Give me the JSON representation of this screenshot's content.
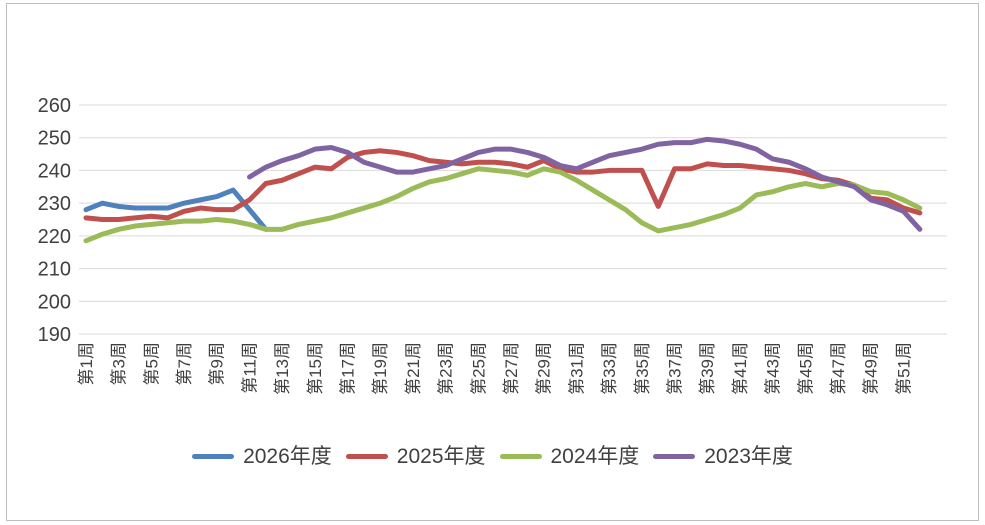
{
  "chart_data": {
    "type": "line",
    "title": "",
    "x_axis": {
      "unit": "week",
      "weeks_total": 52,
      "tick_labels": [
        "第1周",
        "第3周",
        "第5周",
        "第7周",
        "第9周",
        "第11周",
        "第13周",
        "第15周",
        "第17周",
        "第19周",
        "第21周",
        "第23周",
        "第25周",
        "第27周",
        "第29周",
        "第31周",
        "第33周",
        "第35周",
        "第37周",
        "第39周",
        "第41周",
        "第43周",
        "第45周",
        "第47周",
        "第49周",
        "第51周"
      ]
    },
    "y_axis": {
      "min": 190,
      "max": 260,
      "tick_step": 10,
      "ticks": [
        190,
        200,
        210,
        220,
        230,
        240,
        250,
        260
      ]
    },
    "grid": true,
    "legend_position": "bottom",
    "series": [
      {
        "label": "2026年度",
        "color": "#4F81BD",
        "start_week": 1,
        "values": [
          228,
          230,
          229,
          228.5,
          228.5,
          228.5,
          230,
          231,
          232,
          234,
          228,
          222
        ]
      },
      {
        "label": "2025年度",
        "color": "#C0504D",
        "start_week": 1,
        "values": [
          225.5,
          225,
          225,
          225.5,
          226,
          225.5,
          227.5,
          228.5,
          228,
          228,
          231,
          236,
          237,
          239,
          241,
          240.5,
          244,
          245.5,
          246,
          245.5,
          244.5,
          243,
          242.5,
          242,
          242.5,
          242.5,
          242,
          241,
          243,
          240.5,
          239.5,
          239.5,
          240,
          240,
          240,
          229,
          240.5,
          240.5,
          242,
          241.5,
          241.5,
          241,
          240.5,
          240,
          239,
          237.5,
          237,
          235.5,
          231.5,
          231,
          228.5,
          227
        ]
      },
      {
        "label": "2024年度",
        "color": "#9BBB59",
        "start_week": 1,
        "values": [
          218.5,
          220.5,
          222,
          223,
          223.5,
          224,
          224.5,
          224.5,
          225,
          224.5,
          223.5,
          222,
          222,
          223.5,
          224.5,
          225.5,
          227,
          228.5,
          230,
          232,
          234.5,
          236.5,
          237.5,
          239,
          240.5,
          240,
          239.5,
          238.5,
          240.5,
          239.5,
          237,
          234,
          231,
          228,
          224,
          221.5,
          222.5,
          223.5,
          225,
          226.5,
          228.5,
          232.5,
          233.5,
          235,
          236,
          235,
          236,
          235.5,
          233.5,
          233,
          231,
          228.5
        ]
      },
      {
        "label": "2023年度",
        "color": "#8064A2",
        "start_week": 11,
        "values": [
          238,
          241,
          243,
          244.5,
          246.5,
          247,
          245.5,
          242.5,
          241,
          239.5,
          239.5,
          240.5,
          241.5,
          243.5,
          245.5,
          246.5,
          246.5,
          245.5,
          244,
          241.5,
          240.5,
          242.5,
          244.5,
          245.5,
          246.5,
          248,
          248.5,
          248.5,
          249.5,
          249,
          248,
          246.5,
          243.5,
          242.5,
          240.5,
          238,
          236.5,
          235,
          231,
          229.5,
          227.5,
          222
        ]
      }
    ]
  },
  "styles": {
    "background": "#FFFFFF",
    "border_color": "#BFBFBF",
    "grid_color": "#D9D9D9",
    "text_color": "#404040"
  }
}
